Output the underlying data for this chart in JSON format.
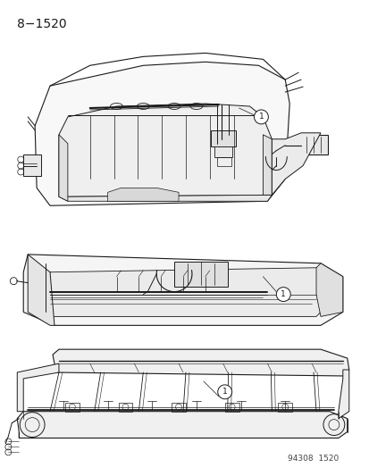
{
  "title": "8−1520",
  "footer": "94308  1520",
  "bg_color": "#ffffff",
  "lc": "#1a1a1a",
  "title_fontsize": 10,
  "footer_fontsize": 6.5,
  "fig_width": 4.14,
  "fig_height": 5.33,
  "dpi": 100
}
